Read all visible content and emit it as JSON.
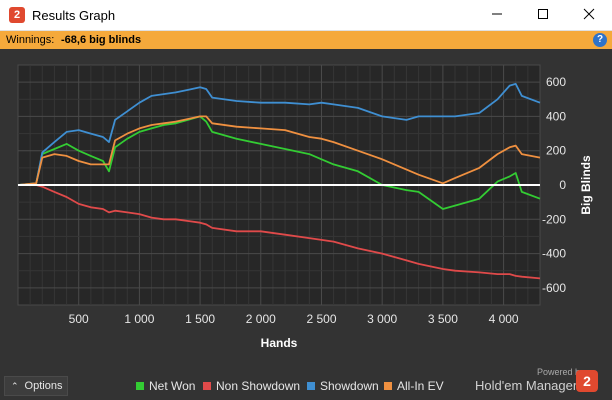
{
  "window": {
    "title": "Results Graph",
    "icon": "hm2-logo-icon",
    "controls": [
      "minimize-icon",
      "maximize-icon",
      "close-icon"
    ]
  },
  "winnings": {
    "label": "Winnings:",
    "value": "-68,6 big blinds"
  },
  "footer": {
    "options_label": "Options",
    "powered_by": "Powered by",
    "brand": "Hold'em Manager",
    "brand_logo_text": "2"
  },
  "colors": {
    "net_won": "#33cc33",
    "non_showdown": "#e04a4a",
    "showdown": "#3f8fd2",
    "all_in_ev": "#ef9040",
    "zero_line": "#ffffff",
    "accent": "#f5a93b"
  },
  "chart_data": {
    "type": "line",
    "xlabel": "Hands",
    "ylabel": "Big Blinds",
    "xlim": [
      0,
      4300
    ],
    "ylim": [
      -700,
      700
    ],
    "x_ticks": [
      {
        "value": 500,
        "label": "500"
      },
      {
        "value": 1000,
        "label": "1 000"
      },
      {
        "value": 1500,
        "label": "1 500"
      },
      {
        "value": 2000,
        "label": "2 000"
      },
      {
        "value": 2500,
        "label": "2 500"
      },
      {
        "value": 3000,
        "label": "3 000"
      },
      {
        "value": 3500,
        "label": "3 500"
      },
      {
        "value": 4000,
        "label": "4 000"
      }
    ],
    "y_ticks": [
      {
        "value": 600,
        "label": "600"
      },
      {
        "value": 400,
        "label": "400"
      },
      {
        "value": 200,
        "label": "200"
      },
      {
        "value": 0,
        "label": "0"
      },
      {
        "value": -200,
        "label": "-200"
      },
      {
        "value": -400,
        "label": "-400"
      },
      {
        "value": -600,
        "label": "-600"
      }
    ],
    "grid": true,
    "legend_position": "bottom",
    "x": [
      0,
      150,
      200,
      300,
      400,
      500,
      600,
      700,
      750,
      800,
      900,
      1000,
      1100,
      1200,
      1300,
      1400,
      1500,
      1550,
      1600,
      1800,
      2000,
      2200,
      2400,
      2500,
      2600,
      2800,
      3000,
      3200,
      3300,
      3500,
      3600,
      3800,
      3950,
      4050,
      4100,
      4150,
      4300
    ],
    "series": [
      {
        "name": "Net Won",
        "color_key": "net_won",
        "values": [
          0,
          10,
          180,
          210,
          240,
          200,
          170,
          140,
          80,
          220,
          270,
          310,
          330,
          350,
          360,
          380,
          400,
          370,
          310,
          270,
          240,
          210,
          180,
          150,
          120,
          80,
          0,
          -30,
          -40,
          -140,
          -120,
          -80,
          20,
          50,
          70,
          -40,
          -80
        ]
      },
      {
        "name": "Non Showdown",
        "color_key": "non_showdown",
        "values": [
          0,
          0,
          -10,
          -40,
          -70,
          -110,
          -130,
          -140,
          -160,
          -150,
          -160,
          -170,
          -190,
          -200,
          -200,
          -210,
          -220,
          -230,
          -250,
          -270,
          -270,
          -290,
          -310,
          -320,
          -330,
          -370,
          -400,
          -440,
          -460,
          -490,
          -500,
          -510,
          -520,
          -520,
          -530,
          -535,
          -545
        ]
      },
      {
        "name": "Showdown",
        "color_key": "showdown",
        "values": [
          0,
          10,
          190,
          250,
          310,
          320,
          300,
          280,
          250,
          380,
          430,
          480,
          520,
          530,
          540,
          555,
          570,
          560,
          510,
          490,
          480,
          480,
          470,
          480,
          470,
          450,
          400,
          380,
          400,
          400,
          400,
          420,
          500,
          580,
          590,
          520,
          480
        ]
      },
      {
        "name": "All-In EV",
        "color_key": "all_in_ev",
        "values": [
          0,
          10,
          160,
          180,
          170,
          140,
          120,
          120,
          120,
          260,
          300,
          330,
          350,
          360,
          370,
          385,
          400,
          400,
          360,
          340,
          330,
          320,
          280,
          270,
          250,
          200,
          150,
          90,
          60,
          10,
          40,
          100,
          180,
          220,
          230,
          180,
          160
        ]
      }
    ]
  }
}
